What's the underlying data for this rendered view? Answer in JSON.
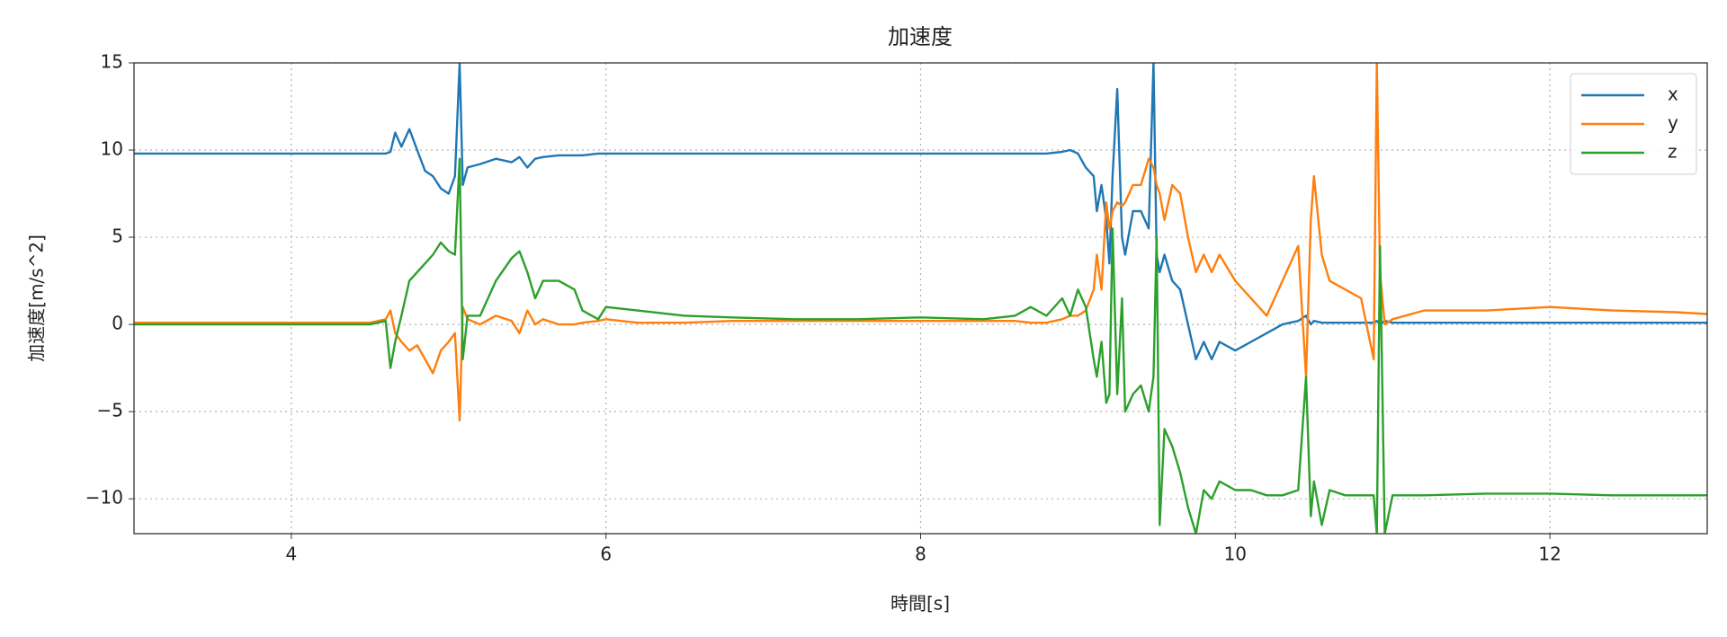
{
  "chart_data": {
    "type": "line",
    "title": "加速度",
    "x_label": "時間[s]",
    "y_label": "加速度[m/s^2]",
    "x": [
      3.0,
      3.5,
      4.0,
      4.5,
      4.6,
      4.63,
      4.66,
      4.7,
      4.75,
      4.8,
      4.85,
      4.9,
      4.95,
      5.0,
      5.04,
      5.07,
      5.09,
      5.12,
      5.2,
      5.3,
      5.4,
      5.45,
      5.5,
      5.55,
      5.6,
      5.7,
      5.8,
      5.85,
      5.95,
      6.0,
      6.2,
      6.5,
      6.8,
      7.2,
      7.6,
      8.0,
      8.4,
      8.6,
      8.7,
      8.8,
      8.9,
      8.95,
      9.0,
      9.05,
      9.1,
      9.12,
      9.15,
      9.18,
      9.2,
      9.22,
      9.25,
      9.28,
      9.3,
      9.35,
      9.4,
      9.45,
      9.48,
      9.5,
      9.52,
      9.55,
      9.6,
      9.65,
      9.7,
      9.75,
      9.8,
      9.85,
      9.9,
      10.0,
      10.1,
      10.2,
      10.3,
      10.4,
      10.45,
      10.48,
      10.5,
      10.55,
      10.6,
      10.7,
      10.8,
      10.88,
      10.9,
      10.92,
      10.95,
      11.0,
      11.2,
      11.6,
      12.0,
      12.4,
      12.8,
      13.0
    ],
    "series": [
      {
        "name": "x",
        "color": "#1f77b4",
        "values": [
          9.8,
          9.8,
          9.8,
          9.8,
          9.8,
          9.9,
          11.0,
          10.2,
          11.2,
          10.0,
          8.8,
          8.5,
          7.8,
          7.5,
          8.5,
          15,
          8.0,
          9.0,
          9.2,
          9.5,
          9.3,
          9.6,
          9.0,
          9.5,
          9.6,
          9.7,
          9.7,
          9.7,
          9.8,
          9.8,
          9.8,
          9.8,
          9.8,
          9.8,
          9.8,
          9.8,
          9.8,
          9.8,
          9.8,
          9.8,
          9.9,
          10.0,
          9.8,
          9.0,
          8.5,
          6.5,
          8.0,
          6.0,
          3.5,
          8.5,
          13.5,
          5.0,
          4.0,
          6.5,
          6.5,
          5.5,
          15,
          4.0,
          3.0,
          4.0,
          2.5,
          2.0,
          0.0,
          -2.0,
          -1.0,
          -2.0,
          -1.0,
          -1.5,
          -1.0,
          -0.5,
          0.0,
          0.2,
          0.5,
          0.0,
          0.2,
          0.1,
          0.1,
          0.1,
          0.1,
          0.1,
          0.2,
          0.0,
          0.2,
          0.1,
          0.1,
          0.1,
          0.1,
          0.1,
          0.1,
          0.1
        ]
      },
      {
        "name": "y",
        "color": "#ff7f0e",
        "values": [
          0.1,
          0.1,
          0.1,
          0.1,
          0.3,
          0.8,
          -0.5,
          -1.0,
          -1.5,
          -1.2,
          -2.0,
          -2.8,
          -1.5,
          -1.0,
          -0.5,
          -5.5,
          1.0,
          0.3,
          0.0,
          0.5,
          0.2,
          -0.5,
          0.8,
          0.0,
          0.3,
          0.0,
          0.0,
          0.1,
          0.2,
          0.3,
          0.1,
          0.1,
          0.2,
          0.2,
          0.2,
          0.2,
          0.2,
          0.2,
          0.1,
          0.1,
          0.3,
          0.5,
          0.5,
          0.8,
          2.0,
          4.0,
          2.0,
          7.0,
          5.5,
          6.5,
          7.0,
          6.8,
          7.0,
          8.0,
          8.0,
          9.5,
          9.0,
          8.0,
          7.5,
          6.0,
          8.0,
          7.5,
          5.0,
          3.0,
          4.0,
          3.0,
          4.0,
          2.5,
          1.5,
          0.5,
          2.5,
          4.5,
          -3.0,
          6.0,
          8.5,
          4.0,
          2.5,
          2.0,
          1.5,
          -2.0,
          15,
          3.0,
          0.0,
          0.3,
          0.8,
          0.8,
          1.0,
          0.8,
          0.7,
          0.6
        ]
      },
      {
        "name": "z",
        "color": "#2ca02c",
        "values": [
          0,
          0,
          0,
          0,
          0.2,
          -2.5,
          -1.0,
          0.5,
          2.5,
          3.0,
          3.5,
          4.0,
          4.7,
          4.2,
          4.0,
          9.5,
          -2.0,
          0.5,
          0.5,
          2.5,
          3.8,
          4.2,
          3.0,
          1.5,
          2.5,
          2.5,
          2.0,
          0.8,
          0.3,
          1.0,
          0.8,
          0.5,
          0.4,
          0.3,
          0.3,
          0.4,
          0.3,
          0.5,
          1.0,
          0.5,
          1.5,
          0.5,
          2.0,
          1.0,
          -2.0,
          -3.0,
          -1.0,
          -4.5,
          -4.0,
          5.5,
          -4.0,
          1.5,
          -5.0,
          -4.0,
          -3.5,
          -5.0,
          -3.0,
          5.0,
          -11.5,
          -6.0,
          -7.0,
          -8.5,
          -10.5,
          -12,
          -9.5,
          -10.0,
          -9.0,
          -9.5,
          -9.5,
          -9.8,
          -9.8,
          -9.5,
          -3.0,
          -11,
          -9.0,
          -11.5,
          -9.5,
          -9.8,
          -9.8,
          -9.8,
          -12,
          4.5,
          -12,
          -9.8,
          -9.8,
          -9.7,
          -9.7,
          -9.8,
          -9.8,
          -9.8
        ]
      }
    ],
    "xlim": [
      3,
      13
    ],
    "ylim": [
      -12,
      15
    ],
    "xticks": [
      4,
      6,
      8,
      10,
      12
    ],
    "yticks": [
      {
        "value": -10,
        "label": "−10"
      },
      {
        "value": -5,
        "label": "−5"
      },
      0,
      5,
      10,
      15
    ],
    "grid": true,
    "legend": "upper right"
  }
}
